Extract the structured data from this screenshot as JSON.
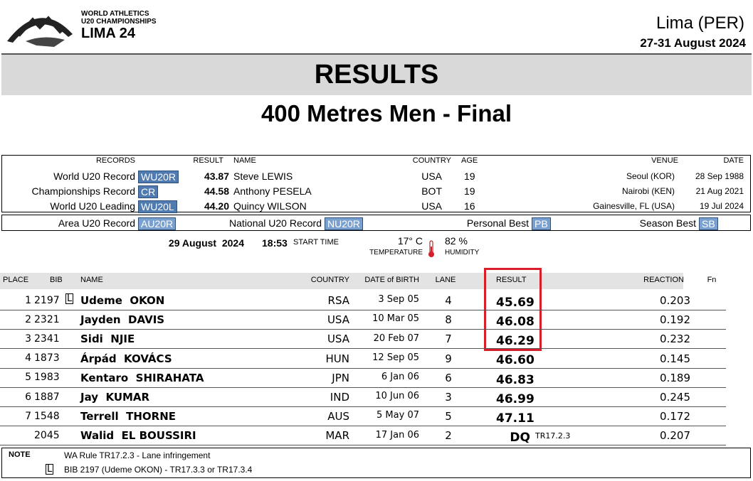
{
  "header": {
    "org_line1": "WORLD ATHLETICS",
    "org_line2": "U20 CHAMPIONSHIPS",
    "org_line3": "LIMA 24",
    "city": "Lima (PER)",
    "dates": "27-31 August 2024"
  },
  "title": "RESULTS",
  "subtitle": "400 Metres Men - Final",
  "records": {
    "columns": [
      "RECORDS",
      "RESULT",
      "NAME",
      "COUNTRY",
      "AGE",
      "VENUE",
      "DATE"
    ],
    "rows": [
      {
        "label": "World U20 Record",
        "code": "WU20R",
        "result": "43.87",
        "name": "Steve LEWIS",
        "country": "USA",
        "age": "19",
        "venue": "Seoul (KOR)",
        "date": "28 Sep 1988"
      },
      {
        "label": "Championships Record",
        "code": "CR",
        "result": "44.58",
        "name": "Anthony PESELA",
        "country": "BOT",
        "age": "19",
        "venue": "Nairobi (KEN)",
        "date": "21 Aug 2021"
      },
      {
        "label": "World U20 Leading",
        "code": "WU20L",
        "result": "44.20",
        "name": "Quincy WILSON",
        "country": "USA",
        "age": "16",
        "venue": "Gainesville, FL (USA)",
        "date": "19 Jul 2024"
      }
    ],
    "legend": [
      {
        "label": "Area U20 Record",
        "code": "AU20R"
      },
      {
        "label": "National U20 Record",
        "code": "NU20R"
      },
      {
        "label": "Personal Best",
        "code": "PB"
      },
      {
        "label": "Season Best",
        "code": "SB"
      }
    ]
  },
  "conditions": {
    "date": "29 August  2024",
    "time": "18:53",
    "time_label": "START TIME",
    "temperature": "17° C",
    "temperature_label": "TEMPERATURE",
    "humidity": "82 %",
    "humidity_label": "HUMIDITY"
  },
  "results": {
    "columns": [
      "PLACE",
      "BIB",
      "NAME",
      "COUNTRY",
      "DATE of BIRTH",
      "LANE",
      "RESULT",
      "REACTION",
      "Fn"
    ],
    "rows": [
      {
        "place": "1",
        "bib": "2197",
        "marker": "L",
        "name": "Udeme  OKON",
        "country": "RSA",
        "dob": "3 Sep 05",
        "lane": "4",
        "result": "45.69",
        "reaction": "0.203"
      },
      {
        "place": "2",
        "bib": "2321",
        "name": "Jayden  DAVIS",
        "country": "USA",
        "dob": "10 Mar 05",
        "lane": "8",
        "result": "46.08",
        "reaction": "0.192"
      },
      {
        "place": "3",
        "bib": "2341",
        "name": "Sidi  NJIE",
        "country": "USA",
        "dob": "20 Feb 07",
        "lane": "7",
        "result": "46.29",
        "reaction": "0.232"
      },
      {
        "place": "4",
        "bib": "1873",
        "name": "Árpád  KOVÁCS",
        "country": "HUN",
        "dob": "12 Sep 05",
        "lane": "9",
        "result": "46.60",
        "reaction": "0.145"
      },
      {
        "place": "5",
        "bib": "1983",
        "name": "Kentaro  SHIRAHATA",
        "country": "JPN",
        "dob": "6 Jan 06",
        "lane": "6",
        "result": "46.83",
        "reaction": "0.189"
      },
      {
        "place": "6",
        "bib": "1887",
        "name": "Jay  KUMAR",
        "country": "IND",
        "dob": "10 Jun 06",
        "lane": "3",
        "result": "46.99",
        "reaction": "0.245"
      },
      {
        "place": "7",
        "bib": "1548",
        "name": "Terrell  THORNE",
        "country": "AUS",
        "dob": "5 May 07",
        "lane": "5",
        "result": "47.11",
        "reaction": "0.172"
      },
      {
        "bib": "2045",
        "name": "Walid  EL BOUSSIRI",
        "country": "MAR",
        "dob": "17 Jan 06",
        "lane": "2",
        "result": "DQ",
        "rule": "TR17.2.3",
        "reaction": "0.207"
      }
    ]
  },
  "note": {
    "label": "NOTE",
    "line1": "WA Rule TR17.2.3 - Lane infringement",
    "marker": "L",
    "line2": "BIB 2197 (Udeme OKON) - TR17.3.3 or TR17.3.4"
  }
}
